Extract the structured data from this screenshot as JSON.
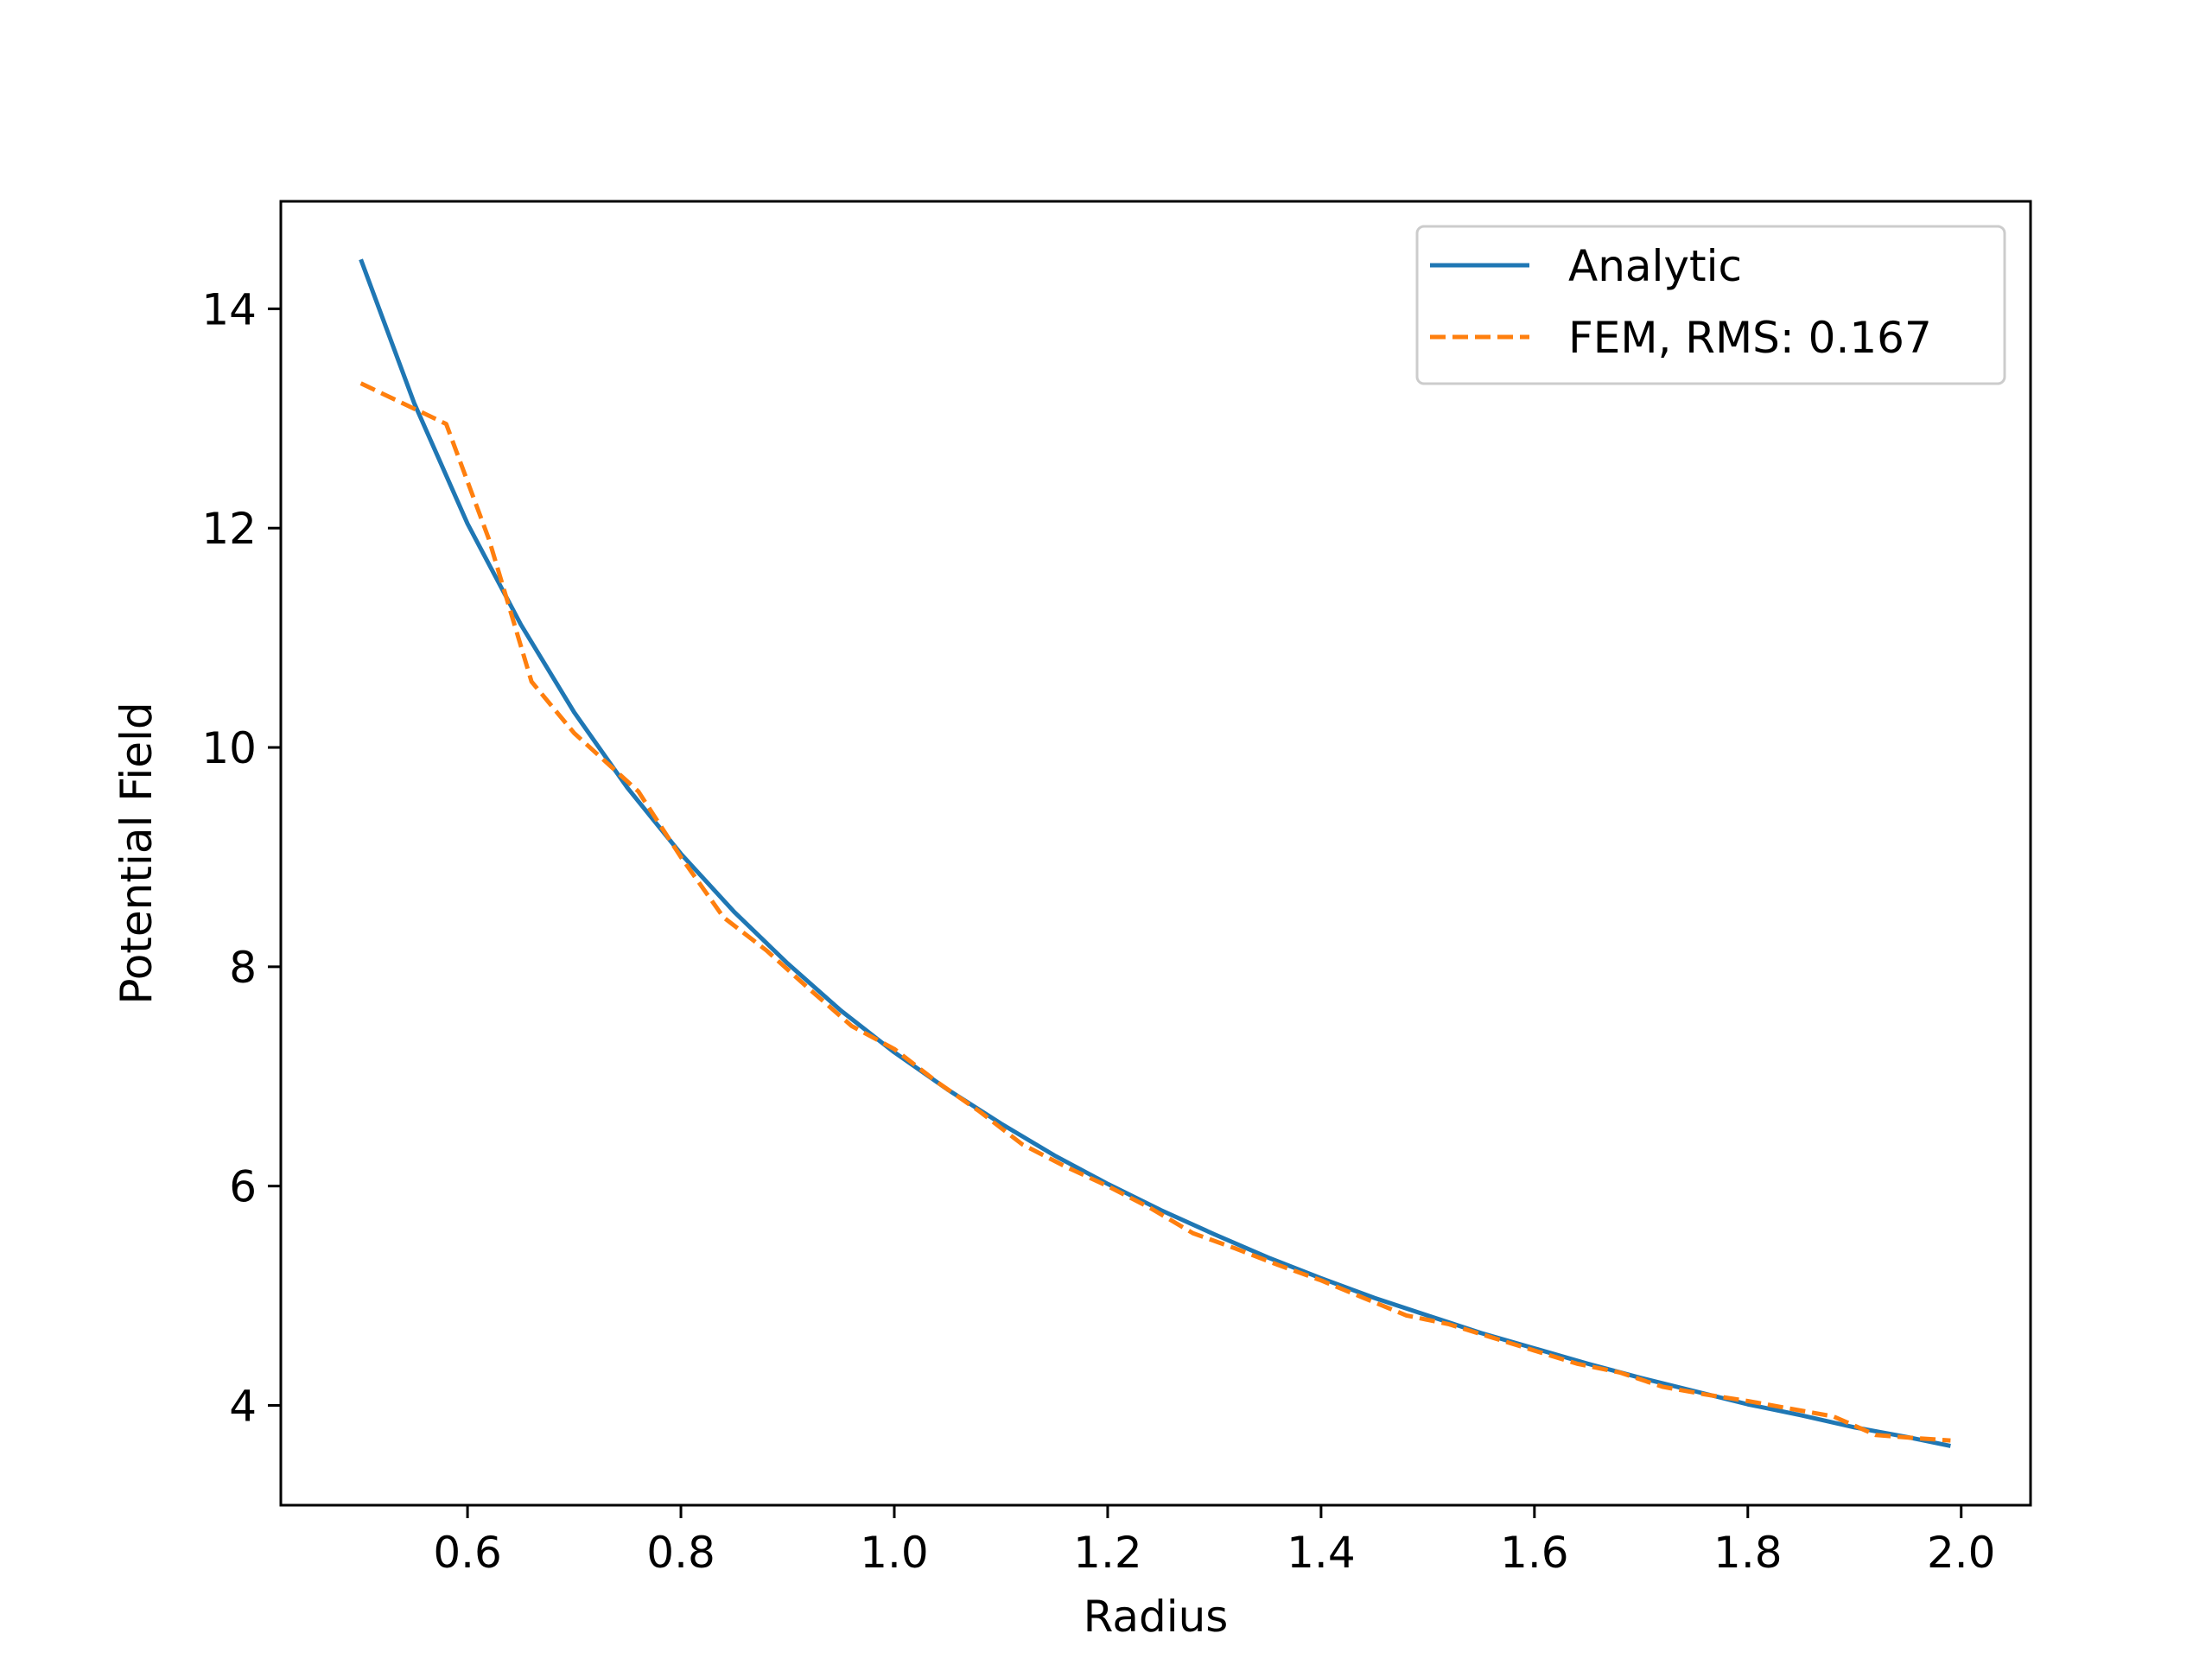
{
  "chart_data": {
    "type": "line",
    "xlabel": "Radius",
    "ylabel": "Potential Field",
    "xlim": [
      0.425,
      2.065
    ],
    "ylim": [
      3.09,
      14.98
    ],
    "xticks": [
      0.6,
      0.8,
      1.0,
      1.2,
      1.4,
      1.6,
      1.8,
      2.0
    ],
    "xtick_labels": [
      "0.6",
      "0.8",
      "1.0",
      "1.2",
      "1.4",
      "1.6",
      "1.8",
      "2.0"
    ],
    "yticks": [
      4,
      6,
      8,
      10,
      12,
      14
    ],
    "ytick_labels": [
      "4",
      "6",
      "8",
      "10",
      "12",
      "14"
    ],
    "grid": false,
    "legend_position": "top-right",
    "series": [
      {
        "name": "Analytic",
        "color": "#1f77b4",
        "style": "solid",
        "x": [
          0.5,
          0.55,
          0.6,
          0.65,
          0.7,
          0.75,
          0.8,
          0.85,
          0.9,
          0.95,
          1.0,
          1.05,
          1.1,
          1.15,
          1.2,
          1.25,
          1.3,
          1.35,
          1.4,
          1.45,
          1.5,
          1.55,
          1.6,
          1.65,
          1.7,
          1.75,
          1.8,
          1.85,
          1.9,
          1.95,
          1.99
        ],
        "y": [
          14.45,
          13.14,
          12.04,
          11.12,
          10.32,
          9.63,
          9.03,
          8.5,
          8.03,
          7.6,
          7.22,
          6.88,
          6.57,
          6.28,
          6.02,
          5.78,
          5.56,
          5.35,
          5.16,
          4.98,
          4.82,
          4.66,
          4.52,
          4.38,
          4.25,
          4.13,
          4.01,
          3.91,
          3.8,
          3.71,
          3.63
        ]
      },
      {
        "name": "FEM, RMS: 0.167",
        "color": "#ff7f0e",
        "style": "dashed",
        "x": [
          0.5,
          0.58,
          0.62,
          0.66,
          0.7,
          0.76,
          0.8,
          0.84,
          0.88,
          0.92,
          0.96,
          1.0,
          1.04,
          1.08,
          1.12,
          1.16,
          1.2,
          1.24,
          1.28,
          1.32,
          1.36,
          1.4,
          1.44,
          1.48,
          1.52,
          1.56,
          1.6,
          1.64,
          1.68,
          1.72,
          1.76,
          1.8,
          1.84,
          1.88,
          1.92,
          1.96,
          1.99
        ],
        "y": [
          13.32,
          12.95,
          11.9,
          10.6,
          10.13,
          9.6,
          9.0,
          8.45,
          8.15,
          7.8,
          7.46,
          7.25,
          6.95,
          6.68,
          6.38,
          6.18,
          6.0,
          5.8,
          5.57,
          5.43,
          5.28,
          5.14,
          4.98,
          4.82,
          4.74,
          4.62,
          4.5,
          4.38,
          4.3,
          4.17,
          4.1,
          4.04,
          3.97,
          3.9,
          3.73,
          3.7,
          3.68
        ]
      }
    ]
  }
}
